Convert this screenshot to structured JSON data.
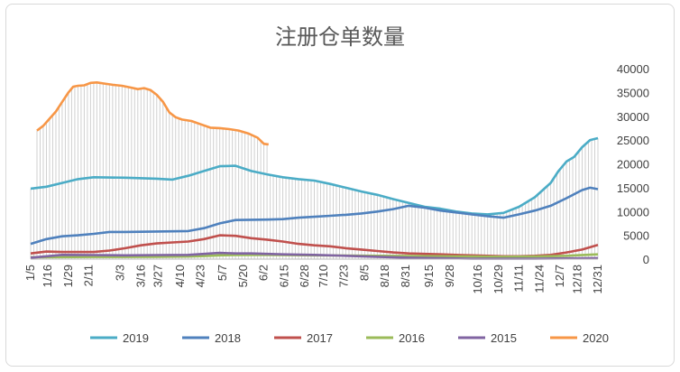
{
  "chart_data": {
    "type": "line",
    "title": "注册仓单数量",
    "ylim": [
      0,
      40000
    ],
    "yticks": [
      0,
      5000,
      10000,
      15000,
      20000,
      25000,
      30000,
      35000,
      40000
    ],
    "ytick_labels": [
      "0",
      "5000",
      "10000",
      "15000",
      "20000",
      "25000",
      "30000",
      "35000",
      "40000"
    ],
    "x_range": [
      0,
      360
    ],
    "xticks": [
      {
        "label": "1/5",
        "x": 0
      },
      {
        "label": "1/16",
        "x": 11
      },
      {
        "label": "1/29",
        "x": 24
      },
      {
        "label": "2/11",
        "x": 37
      },
      {
        "label": "3/3",
        "x": 57
      },
      {
        "label": "3/16",
        "x": 70
      },
      {
        "label": "3/27",
        "x": 81
      },
      {
        "label": "4/10",
        "x": 95
      },
      {
        "label": "4/23",
        "x": 108
      },
      {
        "label": "5/7",
        "x": 122
      },
      {
        "label": "5/20",
        "x": 135
      },
      {
        "label": "6/2",
        "x": 148
      },
      {
        "label": "6/15",
        "x": 161
      },
      {
        "label": "6/28",
        "x": 174
      },
      {
        "label": "7/10",
        "x": 186
      },
      {
        "label": "7/23",
        "x": 199
      },
      {
        "label": "8/5",
        "x": 212
      },
      {
        "label": "8/18",
        "x": 225
      },
      {
        "label": "8/31",
        "x": 238
      },
      {
        "label": "9/15",
        "x": 253
      },
      {
        "label": "9/28",
        "x": 266
      },
      {
        "label": "10/16",
        "x": 284
      },
      {
        "label": "10/29",
        "x": 297
      },
      {
        "label": "11/11",
        "x": 310
      },
      {
        "label": "11/24",
        "x": 323
      },
      {
        "label": "12/7",
        "x": 336
      },
      {
        "label": "12/18",
        "x": 347
      },
      {
        "label": "12/31",
        "x": 360
      }
    ],
    "grid": false,
    "legend_position": "bottom",
    "fill_series": "2020",
    "series": [
      {
        "name": "2019",
        "color": "#4bacc6",
        "points": [
          [
            0,
            14800
          ],
          [
            10,
            15200
          ],
          [
            20,
            16000
          ],
          [
            30,
            16800
          ],
          [
            40,
            17200
          ],
          [
            60,
            17100
          ],
          [
            80,
            16900
          ],
          [
            90,
            16700
          ],
          [
            100,
            17500
          ],
          [
            110,
            18500
          ],
          [
            120,
            19500
          ],
          [
            130,
            19600
          ],
          [
            140,
            18500
          ],
          [
            150,
            17800
          ],
          [
            160,
            17200
          ],
          [
            170,
            16800
          ],
          [
            180,
            16500
          ],
          [
            190,
            15800
          ],
          [
            200,
            15000
          ],
          [
            210,
            14200
          ],
          [
            220,
            13500
          ],
          [
            230,
            12600
          ],
          [
            240,
            11800
          ],
          [
            250,
            11000
          ],
          [
            260,
            10600
          ],
          [
            270,
            10000
          ],
          [
            280,
            9600
          ],
          [
            290,
            9400
          ],
          [
            300,
            9700
          ],
          [
            310,
            11000
          ],
          [
            320,
            13000
          ],
          [
            330,
            16000
          ],
          [
            335,
            18500
          ],
          [
            340,
            20500
          ],
          [
            345,
            21500
          ],
          [
            350,
            23500
          ],
          [
            355,
            25000
          ],
          [
            360,
            25400
          ]
        ]
      },
      {
        "name": "2018",
        "color": "#4f81bd",
        "points": [
          [
            0,
            3200
          ],
          [
            10,
            4200
          ],
          [
            20,
            4800
          ],
          [
            30,
            5000
          ],
          [
            40,
            5300
          ],
          [
            50,
            5700
          ],
          [
            60,
            5700
          ],
          [
            80,
            5800
          ],
          [
            100,
            5900
          ],
          [
            110,
            6500
          ],
          [
            120,
            7500
          ],
          [
            130,
            8200
          ],
          [
            150,
            8300
          ],
          [
            160,
            8400
          ],
          [
            170,
            8700
          ],
          [
            180,
            8900
          ],
          [
            190,
            9100
          ],
          [
            200,
            9300
          ],
          [
            210,
            9600
          ],
          [
            220,
            10000
          ],
          [
            230,
            10500
          ],
          [
            240,
            11200
          ],
          [
            250,
            10800
          ],
          [
            260,
            10200
          ],
          [
            270,
            9800
          ],
          [
            280,
            9400
          ],
          [
            290,
            9000
          ],
          [
            300,
            8700
          ],
          [
            310,
            9400
          ],
          [
            320,
            10200
          ],
          [
            330,
            11200
          ],
          [
            340,
            12800
          ],
          [
            350,
            14500
          ],
          [
            355,
            15000
          ],
          [
            360,
            14700
          ]
        ]
      },
      {
        "name": "2017",
        "color": "#c0504d",
        "points": [
          [
            0,
            1200
          ],
          [
            10,
            1600
          ],
          [
            20,
            1500
          ],
          [
            40,
            1500
          ],
          [
            50,
            1800
          ],
          [
            60,
            2300
          ],
          [
            70,
            2900
          ],
          [
            80,
            3300
          ],
          [
            90,
            3500
          ],
          [
            100,
            3700
          ],
          [
            110,
            4200
          ],
          [
            120,
            5000
          ],
          [
            130,
            4900
          ],
          [
            140,
            4400
          ],
          [
            150,
            4100
          ],
          [
            160,
            3700
          ],
          [
            170,
            3200
          ],
          [
            180,
            2900
          ],
          [
            190,
            2700
          ],
          [
            200,
            2300
          ],
          [
            210,
            2000
          ],
          [
            220,
            1700
          ],
          [
            230,
            1400
          ],
          [
            240,
            1200
          ],
          [
            250,
            1100
          ],
          [
            260,
            1000
          ],
          [
            270,
            900
          ],
          [
            280,
            800
          ],
          [
            290,
            700
          ],
          [
            300,
            600
          ],
          [
            310,
            600
          ],
          [
            320,
            700
          ],
          [
            330,
            900
          ],
          [
            340,
            1400
          ],
          [
            350,
            2000
          ],
          [
            360,
            3000
          ]
        ]
      },
      {
        "name": "2016",
        "color": "#9bbb59",
        "points": [
          [
            0,
            400
          ],
          [
            40,
            450
          ],
          [
            80,
            500
          ],
          [
            100,
            550
          ],
          [
            110,
            650
          ],
          [
            120,
            800
          ],
          [
            130,
            850
          ],
          [
            150,
            900
          ],
          [
            160,
            850
          ],
          [
            180,
            800
          ],
          [
            200,
            750
          ],
          [
            220,
            700
          ],
          [
            240,
            650
          ],
          [
            260,
            600
          ],
          [
            280,
            550
          ],
          [
            300,
            500
          ],
          [
            320,
            550
          ],
          [
            340,
            700
          ],
          [
            360,
            1000
          ]
        ]
      },
      {
        "name": "2015",
        "color": "#8064a2",
        "points": [
          [
            0,
            300
          ],
          [
            20,
            900
          ],
          [
            40,
            850
          ],
          [
            60,
            800
          ],
          [
            80,
            850
          ],
          [
            100,
            900
          ],
          [
            110,
            1100
          ],
          [
            120,
            1300
          ],
          [
            130,
            1200
          ],
          [
            140,
            1200
          ],
          [
            150,
            1100
          ],
          [
            160,
            1000
          ],
          [
            180,
            900
          ],
          [
            200,
            700
          ],
          [
            220,
            500
          ],
          [
            240,
            300
          ],
          [
            260,
            200
          ],
          [
            280,
            100
          ],
          [
            300,
            100
          ],
          [
            320,
            100
          ],
          [
            340,
            150
          ],
          [
            360,
            200
          ]
        ]
      },
      {
        "name": "2020",
        "color": "#f79646",
        "points": [
          [
            4,
            27000
          ],
          [
            8,
            28000
          ],
          [
            12,
            29500
          ],
          [
            16,
            31000
          ],
          [
            20,
            33000
          ],
          [
            24,
            35000
          ],
          [
            27,
            36200
          ],
          [
            30,
            36400
          ],
          [
            34,
            36500
          ],
          [
            38,
            37000
          ],
          [
            42,
            37100
          ],
          [
            46,
            36900
          ],
          [
            52,
            36600
          ],
          [
            58,
            36400
          ],
          [
            64,
            36000
          ],
          [
            68,
            35700
          ],
          [
            72,
            35900
          ],
          [
            76,
            35500
          ],
          [
            80,
            34500
          ],
          [
            84,
            33000
          ],
          [
            88,
            30800
          ],
          [
            92,
            29800
          ],
          [
            96,
            29300
          ],
          [
            102,
            29000
          ],
          [
            108,
            28300
          ],
          [
            114,
            27600
          ],
          [
            120,
            27500
          ],
          [
            126,
            27300
          ],
          [
            132,
            27000
          ],
          [
            138,
            26400
          ],
          [
            144,
            25500
          ],
          [
            148,
            24200
          ],
          [
            151,
            24100
          ]
        ]
      }
    ]
  }
}
